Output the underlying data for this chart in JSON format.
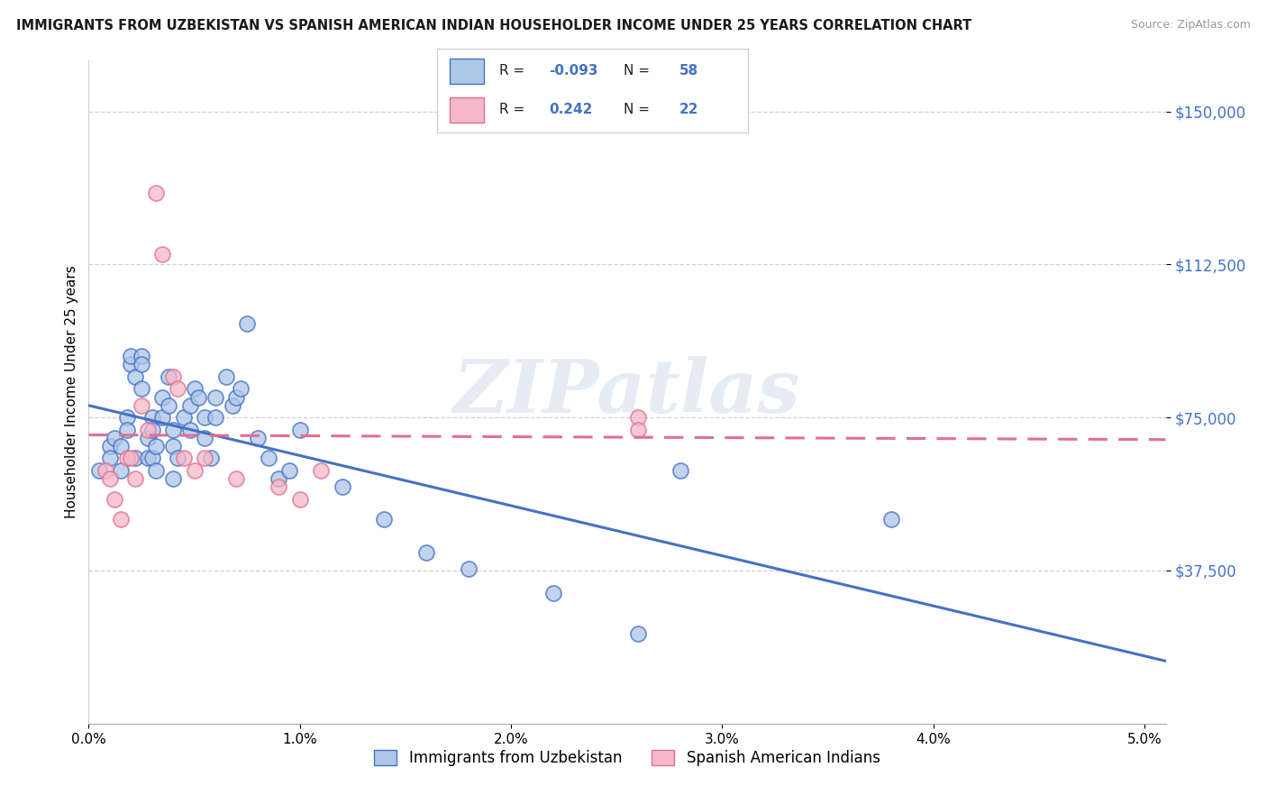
{
  "title": "IMMIGRANTS FROM UZBEKISTAN VS SPANISH AMERICAN INDIAN HOUSEHOLDER INCOME UNDER 25 YEARS CORRELATION CHART",
  "source": "Source: ZipAtlas.com",
  "ylabel": "Householder Income Under 25 years",
  "legend_label1": "Immigrants from Uzbekistan",
  "legend_label2": "Spanish American Indians",
  "r1": "-0.093",
  "n1": "58",
  "r2": "0.242",
  "n2": "22",
  "color_blue": "#aec6e8",
  "color_pink": "#f4b8c8",
  "line_color_blue": "#4472c4",
  "line_color_pink": "#e07090",
  "blue_points": [
    [
      0.0005,
      62000
    ],
    [
      0.001,
      68000
    ],
    [
      0.001,
      65000
    ],
    [
      0.0012,
      70000
    ],
    [
      0.0015,
      68000
    ],
    [
      0.0015,
      62000
    ],
    [
      0.0018,
      75000
    ],
    [
      0.0018,
      72000
    ],
    [
      0.002,
      88000
    ],
    [
      0.002,
      90000
    ],
    [
      0.0022,
      85000
    ],
    [
      0.0022,
      65000
    ],
    [
      0.0025,
      90000
    ],
    [
      0.0025,
      88000
    ],
    [
      0.0025,
      82000
    ],
    [
      0.0028,
      70000
    ],
    [
      0.0028,
      65000
    ],
    [
      0.003,
      75000
    ],
    [
      0.003,
      72000
    ],
    [
      0.003,
      65000
    ],
    [
      0.0032,
      68000
    ],
    [
      0.0032,
      62000
    ],
    [
      0.0035,
      80000
    ],
    [
      0.0035,
      75000
    ],
    [
      0.0038,
      85000
    ],
    [
      0.0038,
      78000
    ],
    [
      0.004,
      72000
    ],
    [
      0.004,
      68000
    ],
    [
      0.004,
      60000
    ],
    [
      0.0042,
      65000
    ],
    [
      0.0045,
      75000
    ],
    [
      0.0048,
      78000
    ],
    [
      0.0048,
      72000
    ],
    [
      0.005,
      82000
    ],
    [
      0.0052,
      80000
    ],
    [
      0.0055,
      75000
    ],
    [
      0.0055,
      70000
    ],
    [
      0.0058,
      65000
    ],
    [
      0.006,
      80000
    ],
    [
      0.006,
      75000
    ],
    [
      0.0065,
      85000
    ],
    [
      0.0068,
      78000
    ],
    [
      0.007,
      80000
    ],
    [
      0.0072,
      82000
    ],
    [
      0.0075,
      98000
    ],
    [
      0.008,
      70000
    ],
    [
      0.0085,
      65000
    ],
    [
      0.009,
      60000
    ],
    [
      0.0095,
      62000
    ],
    [
      0.01,
      72000
    ],
    [
      0.012,
      58000
    ],
    [
      0.014,
      50000
    ],
    [
      0.016,
      42000
    ],
    [
      0.018,
      38000
    ],
    [
      0.022,
      32000
    ],
    [
      0.026,
      22000
    ],
    [
      0.028,
      62000
    ],
    [
      0.038,
      50000
    ]
  ],
  "pink_points": [
    [
      0.0008,
      62000
    ],
    [
      0.001,
      60000
    ],
    [
      0.0012,
      55000
    ],
    [
      0.0015,
      50000
    ],
    [
      0.0018,
      65000
    ],
    [
      0.002,
      65000
    ],
    [
      0.0022,
      60000
    ],
    [
      0.0025,
      78000
    ],
    [
      0.0028,
      72000
    ],
    [
      0.0032,
      130000
    ],
    [
      0.0035,
      115000
    ],
    [
      0.004,
      85000
    ],
    [
      0.0042,
      82000
    ],
    [
      0.0045,
      65000
    ],
    [
      0.005,
      62000
    ],
    [
      0.0055,
      65000
    ],
    [
      0.007,
      60000
    ],
    [
      0.009,
      58000
    ],
    [
      0.01,
      55000
    ],
    [
      0.011,
      62000
    ],
    [
      0.026,
      75000
    ],
    [
      0.026,
      72000
    ]
  ],
  "watermark": "ZIPatlas",
  "background_color": "#ffffff",
  "grid_color": "#d0d0d0",
  "ylim": [
    0,
    162500
  ],
  "xlim": [
    0.0,
    0.051
  ]
}
